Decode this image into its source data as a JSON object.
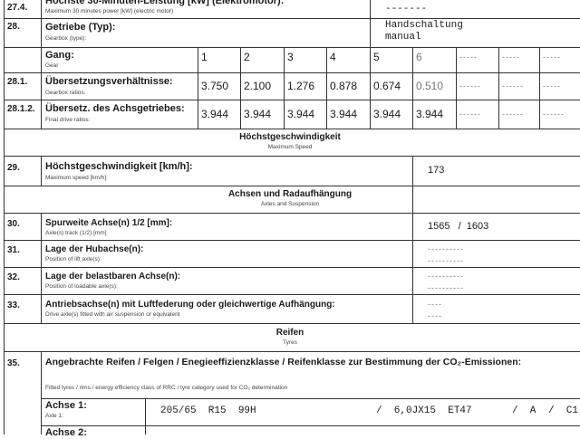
{
  "rows": {
    "r274": {
      "num": "27.4.",
      "de": "Höchste 30-Minuten-Leistung [kW] (Elektromotor):",
      "en": "Maximum 30 minutes power [kW] (electric motor)",
      "value": "-------"
    },
    "r28": {
      "num": "28.",
      "de": "Getriebe (Typ):",
      "en": "Gearbox (type):",
      "value_de": "Handschaltung",
      "value_en": "manual"
    },
    "gear": {
      "de": "Gang:",
      "en": "Gear",
      "values": [
        "1",
        "2",
        "3",
        "4",
        "5",
        "6",
        "-----",
        "-----",
        "-----"
      ]
    },
    "r281": {
      "num": "28.1.",
      "de": "Übersetzungsverhältnisse:",
      "en": "Gearbox ratios:",
      "values": [
        "3.750",
        "2.100",
        "1.276",
        "0.878",
        "0.674",
        "0.510",
        "------",
        "------",
        "-----"
      ]
    },
    "r2812": {
      "num": "28.1.2.",
      "de": "Übersetz. des Achsgetriebes:",
      "en": "Final drive ratios:",
      "values": [
        "3.944",
        "3.944",
        "3.944",
        "3.944",
        "3.944",
        "3.944",
        "------",
        "------",
        "------"
      ]
    },
    "h_speed": {
      "de": "Höchstgeschwindigkeit",
      "en": "Maximum Speed"
    },
    "r29": {
      "num": "29.",
      "de": "Höchstgeschwindigkeit [km/h]:",
      "en": "Maximum speed [km/h]:",
      "value": "173"
    },
    "h_axles": {
      "de": "Achsen und Radaufhängung",
      "en": "Axles and Suspension"
    },
    "r30": {
      "num": "30.",
      "de": "Spurweite Achse(n) 1/2 [mm]:",
      "en": "Axle(s) track (1/2) [mm]",
      "value": "1565   /  1603"
    },
    "r31": {
      "num": "31.",
      "de": "Lage der Hubachse(n):",
      "en": "Position of lift axle(s):",
      "value": "----------"
    },
    "r32": {
      "num": "32.",
      "de": "Lage der belastbaren Achse(n):",
      "en": "Position of loadable axle(s):",
      "value": "----------"
    },
    "r33": {
      "num": "33.",
      "de": "Antriebsachse(n) mit Luftfederung oder gleichwertige Aufhängung:",
      "en": "Drive axle(s) fitted with air suspension or equivalent",
      "value1": "----",
      "value2": "----"
    },
    "h_tyres": {
      "de": "Reifen",
      "en": "Tyres"
    },
    "r35": {
      "num": "35.",
      "de": "Angebrachte Reifen / Felgen / Enegieeffizienzklasse / Reifenklasse zur Bestimmung der CO₂-Emissionen:",
      "en": "Fitted tyres / rims / energy efficiency class of RRC / tyre category used for CO₂ determination"
    },
    "axle1": {
      "de": "Achse 1:",
      "en": "Axle 1:",
      "tyre": "205/65  R15  99H",
      "rim": "/  6,0JX15  ET47",
      "class": "/  A",
      "cat": "/  C1"
    },
    "axle2": {
      "de": "Achse 2:"
    }
  }
}
